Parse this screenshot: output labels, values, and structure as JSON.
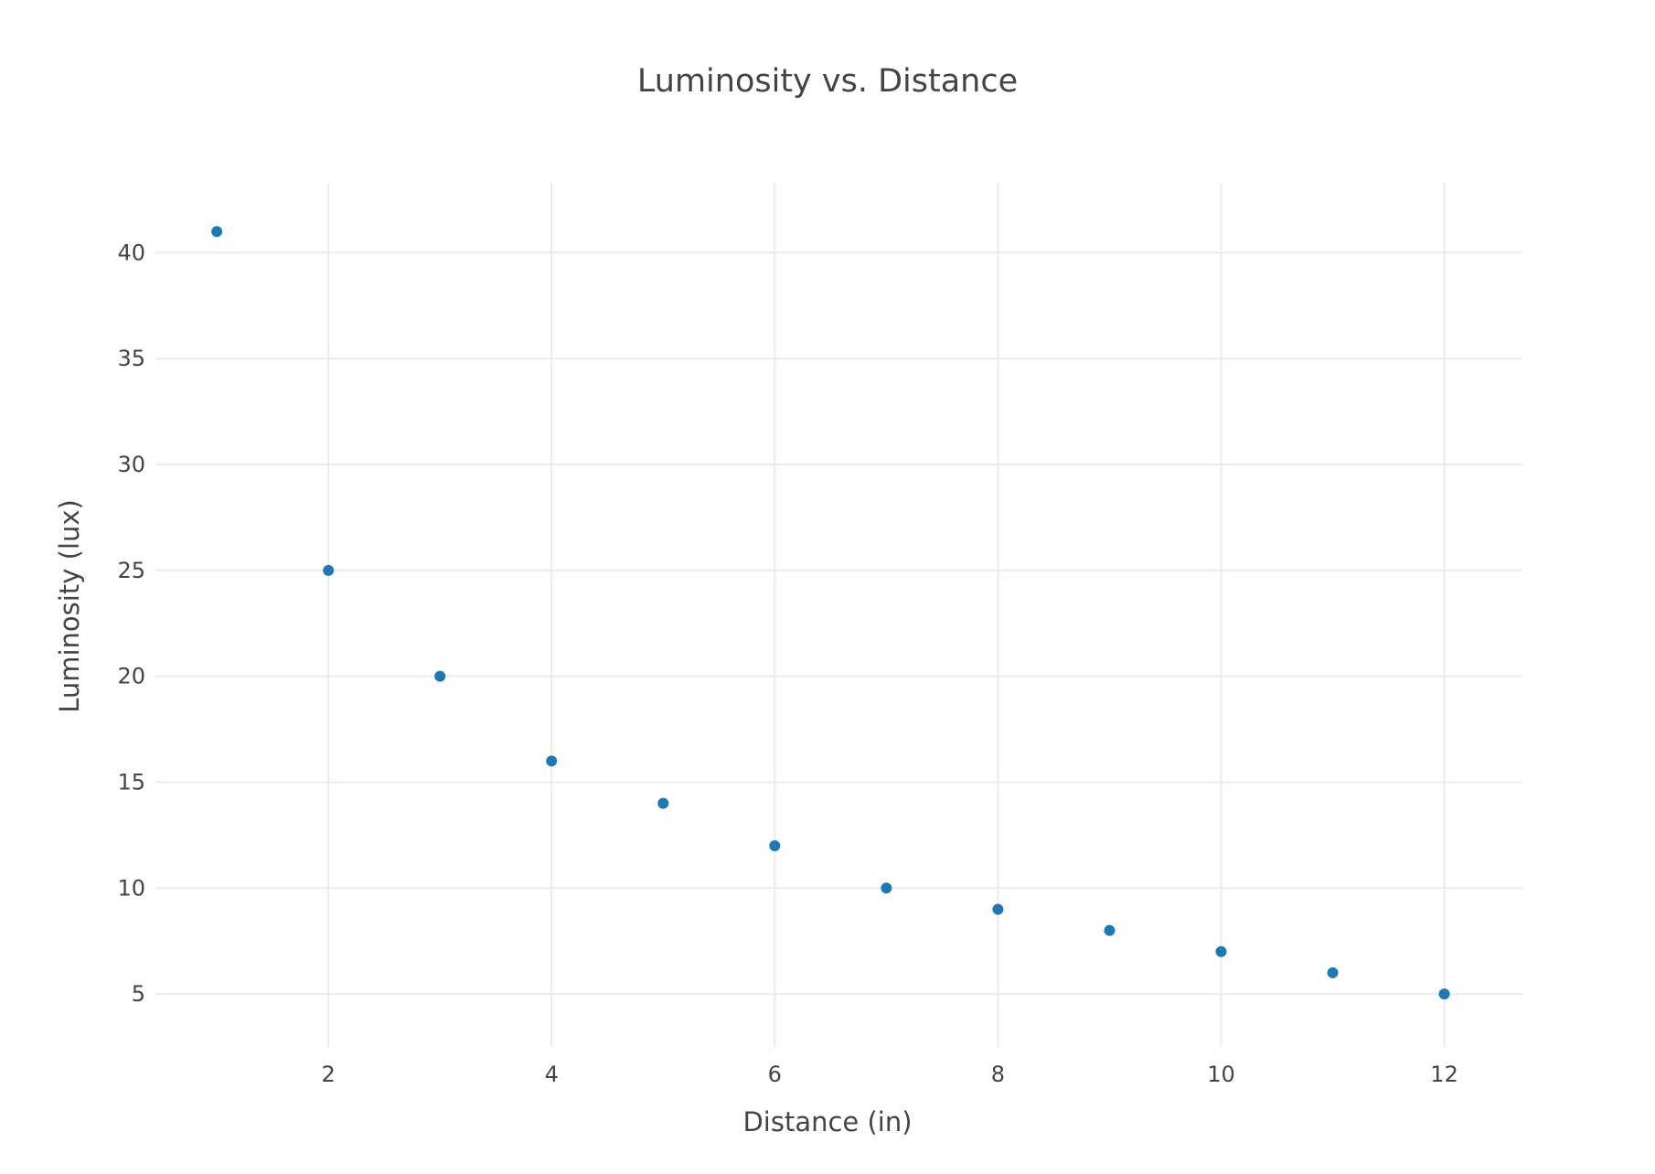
{
  "chart_data": {
    "type": "scatter",
    "title": "Luminosity vs. Distance",
    "xlabel": "Distance (in)",
    "ylabel": "Luminosity (lux)",
    "x": [
      1,
      2,
      3,
      4,
      5,
      6,
      7,
      8,
      9,
      10,
      11,
      12
    ],
    "y": [
      41,
      25,
      20,
      16,
      14,
      12,
      10,
      9,
      8,
      7,
      6,
      5
    ],
    "xlim": [
      0.45,
      12.7
    ],
    "ylim": [
      2.5,
      43.3
    ],
    "x_ticks": [
      2,
      4,
      6,
      8,
      10,
      12
    ],
    "y_ticks": [
      5,
      10,
      15,
      20,
      25,
      30,
      35,
      40
    ],
    "grid": true,
    "marker_color": "#1f77b4",
    "background": "#ffffff"
  }
}
